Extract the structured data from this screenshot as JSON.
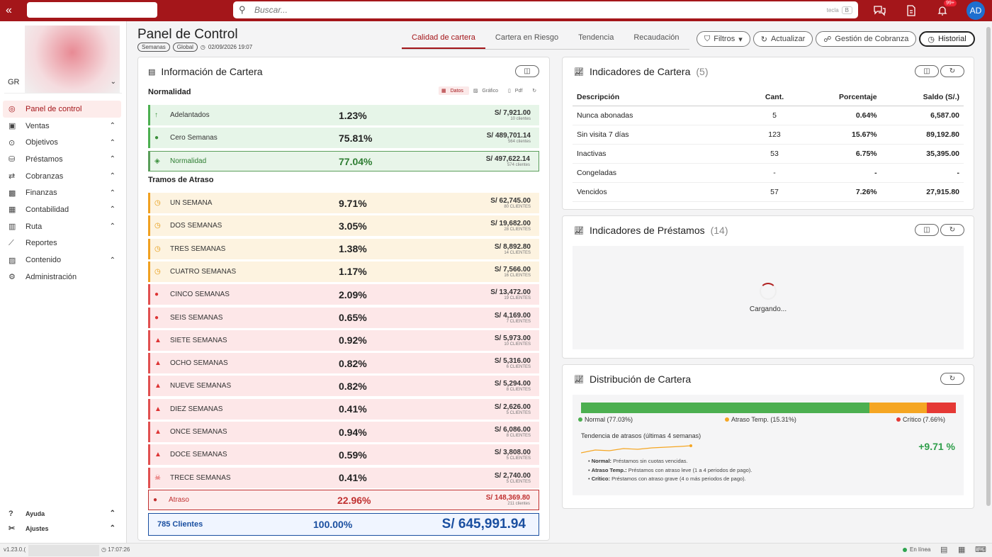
{
  "search": {
    "placeholder": "Buscar...",
    "kbd_label": "tecla",
    "kbd_key": "B"
  },
  "topbar": {
    "notif_badge": "99+",
    "avatar_initials": "AD"
  },
  "sidebar": {
    "org": "GR",
    "items": [
      {
        "label": "Panel de control",
        "active": true,
        "icon": "dashboard-icon"
      },
      {
        "label": "Ventas",
        "icon": "cart-icon",
        "expand": true
      },
      {
        "label": "Objetivos",
        "icon": "target-icon",
        "expand": true
      },
      {
        "label": "Préstamos",
        "icon": "money-icon",
        "expand": true
      },
      {
        "label": "Cobranzas",
        "icon": "collect-icon",
        "expand": true
      },
      {
        "label": "Finanzas",
        "icon": "finance-icon",
        "expand": true
      },
      {
        "label": "Contabilidad",
        "icon": "calculator-icon",
        "expand": true
      },
      {
        "label": "Ruta",
        "icon": "map-icon",
        "expand": true
      },
      {
        "label": "Reportes",
        "icon": "chart-icon",
        "expand": false
      },
      {
        "label": "Contenido",
        "icon": "image-icon",
        "expand": true
      },
      {
        "label": "Administración",
        "icon": "gear-icon",
        "expand": false
      }
    ],
    "bottom": [
      {
        "label": "Ayuda"
      },
      {
        "label": "Ajustes"
      }
    ]
  },
  "status": {
    "version": "v1.23.0.(",
    "time": "17:07:26",
    "online": "En línea"
  },
  "header": {
    "title": "Panel de Control",
    "pill1": "Semanas",
    "pill2": "Global",
    "date": "02/09/2026 19:07",
    "tabs": [
      "Calidad de cartera",
      "Cartera en Riesgo",
      "Tendencia",
      "Recaudación"
    ],
    "filtros": "Filtros",
    "actualizar": "Actualizar",
    "gestion": "Gestión de Cobranza",
    "historial": "Historial"
  },
  "info": {
    "title": "Información de Cartera",
    "normalidad": "Normalidad",
    "tramos": "Tramos de Atraso",
    "toggle": [
      "Datos",
      "Gráfico",
      "Pdf"
    ],
    "normal_rows": [
      {
        "label": "Adelantados",
        "pct": "1.23%",
        "amt": "S/ 7,921.00",
        "cl": "10 clientes"
      },
      {
        "label": "Cero Semanas",
        "pct": "75.81%",
        "amt": "S/ 489,701.14",
        "cl": "564 clientes"
      }
    ],
    "normal_total": {
      "label": "Normalidad",
      "pct": "77.04%",
      "amt": "S/ 497,622.14",
      "cl": "574 clientes"
    },
    "arrears_rows": [
      {
        "label": "UN SEMANA",
        "pct": "9.71%",
        "amt": "S/ 62,745.00",
        "cl": "80 CLIENTES",
        "tone": "yellow"
      },
      {
        "label": "DOS SEMANAS",
        "pct": "3.05%",
        "amt": "S/ 19,682.00",
        "cl": "28 CLIENTES",
        "tone": "yellow"
      },
      {
        "label": "TRES SEMANAS",
        "pct": "1.38%",
        "amt": "S/ 8,892.80",
        "cl": "14 CLIENTES",
        "tone": "yellow"
      },
      {
        "label": "CUATRO SEMANAS",
        "pct": "1.17%",
        "amt": "S/ 7,566.00",
        "cl": "16 CLIENTES",
        "tone": "yellow"
      },
      {
        "label": "CINCO SEMANAS",
        "pct": "2.09%",
        "amt": "S/ 13,472.00",
        "cl": "19 CLIENTES",
        "tone": "pink"
      },
      {
        "label": "SEIS SEMANAS",
        "pct": "0.65%",
        "amt": "S/ 4,169.00",
        "cl": "7 CLIENTES",
        "tone": "pink"
      },
      {
        "label": "SIETE SEMANAS",
        "pct": "0.92%",
        "amt": "S/ 5,973.00",
        "cl": "10 CLIENTES",
        "tone": "pink"
      },
      {
        "label": "OCHO SEMANAS",
        "pct": "0.82%",
        "amt": "S/ 5,316.00",
        "cl": "6 CLIENTES",
        "tone": "pink"
      },
      {
        "label": "NUEVE SEMANAS",
        "pct": "0.82%",
        "amt": "S/ 5,294.00",
        "cl": "8 CLIENTES",
        "tone": "pink"
      },
      {
        "label": "DIEZ SEMANAS",
        "pct": "0.41%",
        "amt": "S/ 2,626.00",
        "cl": "5 CLIENTES",
        "tone": "pink"
      },
      {
        "label": "ONCE SEMANAS",
        "pct": "0.94%",
        "amt": "S/ 6,086.00",
        "cl": "8 CLIENTES",
        "tone": "pink"
      },
      {
        "label": "DOCE SEMANAS",
        "pct": "0.59%",
        "amt": "S/ 3,808.00",
        "cl": "5 CLIENTES",
        "tone": "pink"
      },
      {
        "label": "TRECE SEMANAS",
        "pct": "0.41%",
        "amt": "S/ 2,740.00",
        "cl": "5 CLIENTES",
        "tone": "pink"
      }
    ],
    "arrears_total": {
      "label": "Atraso",
      "pct": "22.96%",
      "amt": "S/ 148,369.80",
      "cl": "211 clientes"
    },
    "grand": {
      "label": "785 Clientes",
      "pct": "100.00%",
      "amt": "S/ 645,991.94"
    }
  },
  "indicators": {
    "title": "Indicadores de Cartera",
    "count": "(5)",
    "headers": [
      "Descripción",
      "Cant.",
      "Porcentaje",
      "Saldo (S/.)"
    ],
    "rows": [
      [
        "Nunca abonadas",
        "5",
        "0.64%",
        "6,587.00"
      ],
      [
        "Sin visita 7 días",
        "123",
        "15.67%",
        "89,192.80"
      ],
      [
        "Inactivas",
        "53",
        "6.75%",
        "35,395.00"
      ],
      [
        "Congeladas",
        "-",
        "-",
        "-"
      ],
      [
        "Vencidos",
        "57",
        "7.26%",
        "27,915.80"
      ]
    ]
  },
  "loans": {
    "title": "Indicadores de Préstamos",
    "count": "(14)",
    "loading": "Cargando..."
  },
  "distribution": {
    "title": "Distribución de Cartera",
    "segments": [
      {
        "label": "Normal (77.03%)",
        "value": 77.03,
        "color": "#4caf50"
      },
      {
        "label": "Atraso Temp. (15.31%)",
        "value": 15.31,
        "color": "#f5a623"
      },
      {
        "label": "Crítico (7.66%)",
        "value": 7.66,
        "color": "#e53935"
      }
    ],
    "trend_label": "Tendencia de atrasos (últimas 4 semanas)",
    "trend_value": "+9.71 %",
    "notes": [
      {
        "k": "Normal:",
        "v": "Préstamos sin cuotas vencidas."
      },
      {
        "k": "Atraso Temp.:",
        "v": "Préstamos con atraso leve (1 a 4 periodos de pago)."
      },
      {
        "k": "Crítico:",
        "v": "Préstamos con atraso grave (4 o más periodos de pago)."
      }
    ]
  }
}
